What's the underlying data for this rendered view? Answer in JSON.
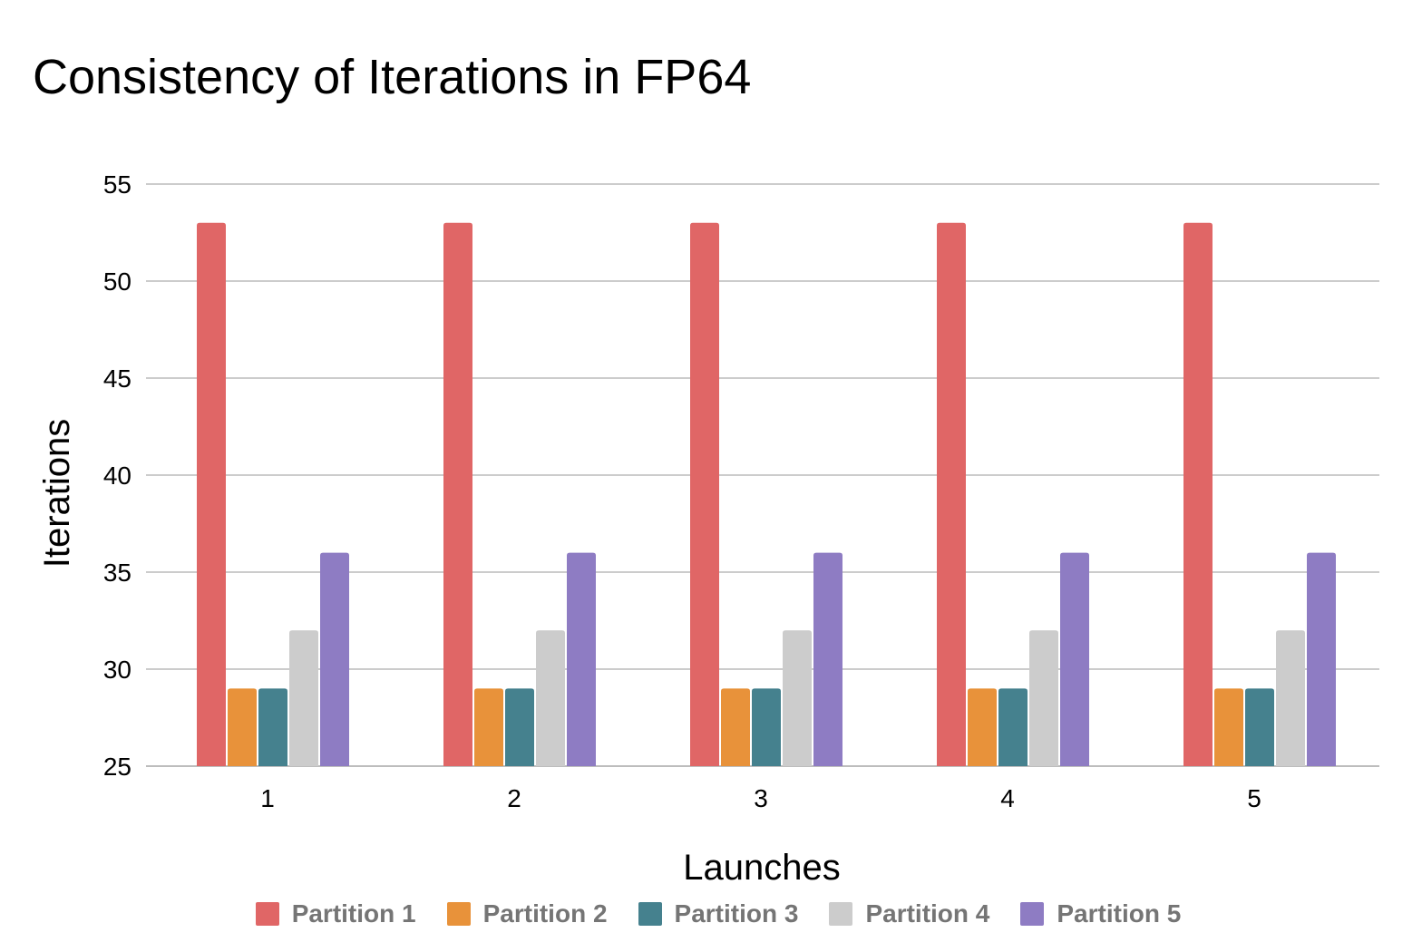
{
  "chart_data": {
    "type": "bar",
    "title": "Consistency of Iterations in FP64",
    "xlabel": "Launches",
    "ylabel": "Iterations",
    "categories": [
      "1",
      "2",
      "3",
      "4",
      "5"
    ],
    "ylim": [
      25,
      55
    ],
    "yticks": [
      25,
      30,
      35,
      40,
      45,
      50,
      55
    ],
    "grid": true,
    "legend_position": "bottom",
    "series": [
      {
        "name": "Partition 1",
        "color": "#e06666",
        "values": [
          53,
          53,
          53,
          53,
          53
        ]
      },
      {
        "name": "Partition 2",
        "color": "#e8923a",
        "values": [
          29,
          29,
          29,
          29,
          29
        ]
      },
      {
        "name": "Partition 3",
        "color": "#45818e",
        "values": [
          29,
          29,
          29,
          29,
          29
        ]
      },
      {
        "name": "Partition 4",
        "color": "#cccccc",
        "values": [
          32,
          32,
          32,
          32,
          32
        ]
      },
      {
        "name": "Partition 5",
        "color": "#8e7cc3",
        "values": [
          36,
          36,
          36,
          36,
          36
        ]
      }
    ]
  }
}
